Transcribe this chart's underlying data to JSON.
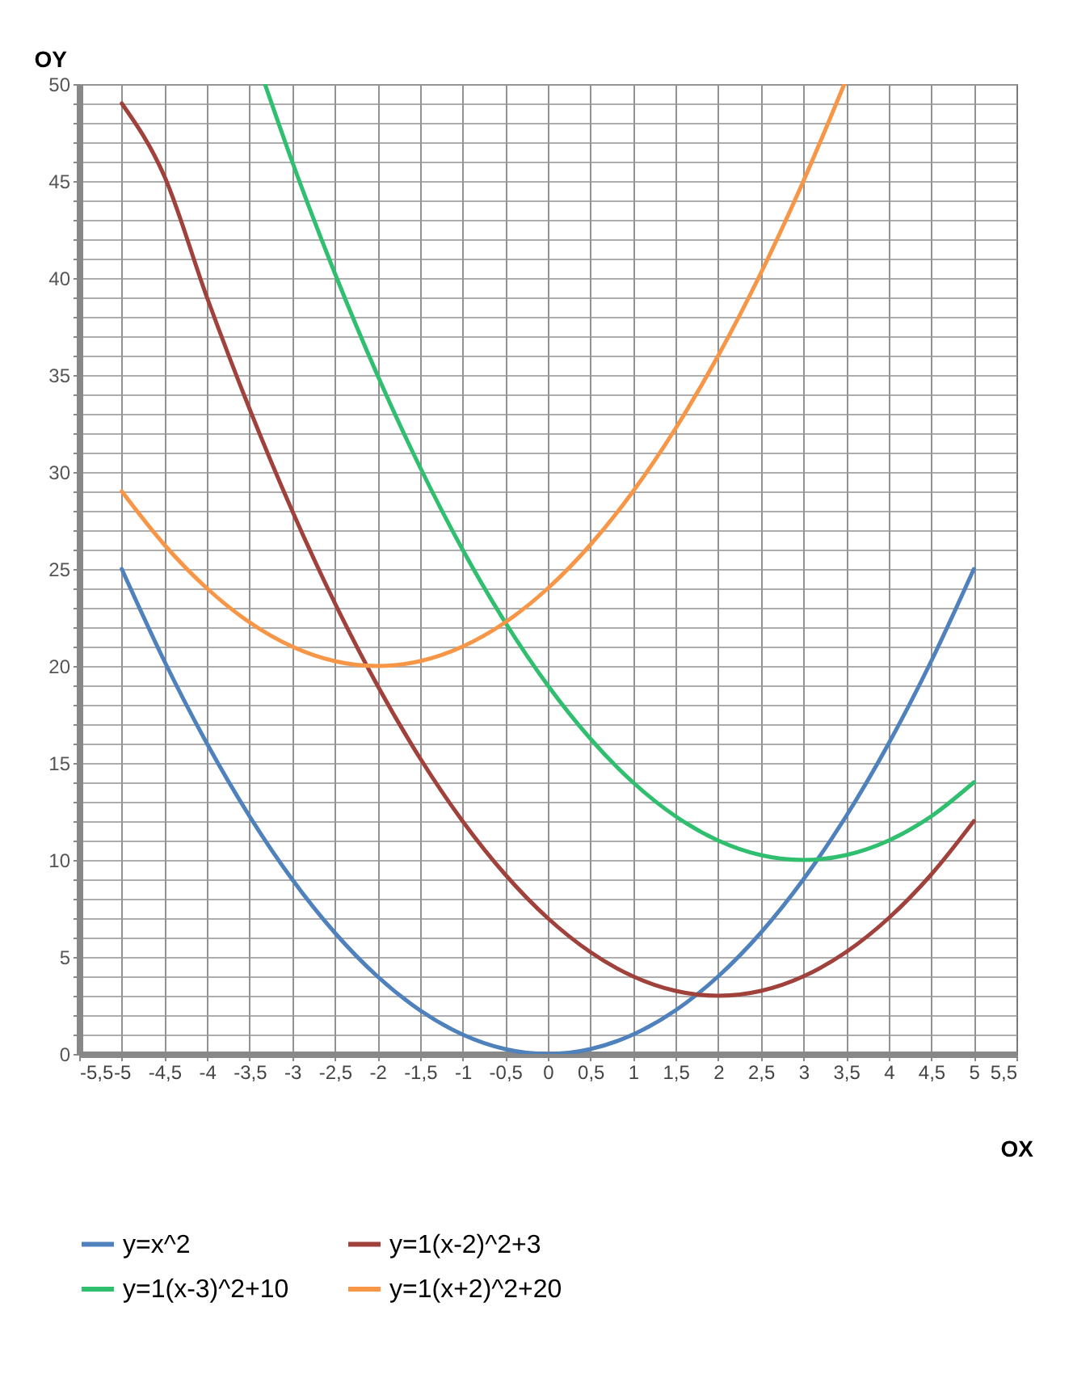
{
  "chart_data": {
    "type": "line",
    "xlabel": "OX",
    "ylabel": "OY",
    "xlim": [
      -5.5,
      5.5
    ],
    "xticks": [
      {
        "value": -5.5,
        "label": "-5,5"
      },
      -5,
      {
        "value": -4.5,
        "label": "-4,5"
      },
      -4,
      {
        "value": -3.5,
        "label": "-3,5"
      },
      -3,
      {
        "value": -2.5,
        "label": "-2,5"
      },
      -2,
      {
        "value": -1.5,
        "label": "-1,5"
      },
      -1,
      {
        "value": -0.5,
        "label": "-0,5"
      },
      0,
      {
        "value": 0.5,
        "label": "0,5"
      },
      1,
      {
        "value": 1.5,
        "label": "1,5"
      },
      2,
      {
        "value": 2.5,
        "label": "2,5"
      },
      3,
      {
        "value": 3.5,
        "label": "3,5"
      },
      4,
      {
        "value": 4.5,
        "label": "4,5"
      },
      5,
      {
        "value": 5.5,
        "label": "5,5"
      }
    ],
    "ylim": [
      0,
      50
    ],
    "yticks": [
      0,
      {
        "value": 1,
        "label": null
      },
      {
        "value": 2,
        "label": null
      },
      {
        "value": 3,
        "label": null
      },
      {
        "value": 4,
        "label": null
      },
      5,
      {
        "value": 6,
        "label": null
      },
      {
        "value": 7,
        "label": null
      },
      {
        "value": 8,
        "label": null
      },
      {
        "value": 9,
        "label": null
      },
      10,
      {
        "value": 11,
        "label": null
      },
      {
        "value": 12,
        "label": null
      },
      {
        "value": 13,
        "label": null
      },
      {
        "value": 14,
        "label": null
      },
      15,
      {
        "value": 16,
        "label": null
      },
      {
        "value": 17,
        "label": null
      },
      {
        "value": 18,
        "label": null
      },
      {
        "value": 19,
        "label": null
      },
      20,
      {
        "value": 21,
        "label": null
      },
      {
        "value": 22,
        "label": null
      },
      {
        "value": 23,
        "label": null
      },
      {
        "value": 24,
        "label": null
      },
      25,
      {
        "value": 26,
        "label": null
      },
      {
        "value": 27,
        "label": null
      },
      {
        "value": 28,
        "label": null
      },
      {
        "value": 29,
        "label": null
      },
      30,
      {
        "value": 31,
        "label": null
      },
      {
        "value": 32,
        "label": null
      },
      {
        "value": 33,
        "label": null
      },
      {
        "value": 34,
        "label": null
      },
      35,
      {
        "value": 36,
        "label": null
      },
      {
        "value": 37,
        "label": null
      },
      {
        "value": 38,
        "label": null
      },
      {
        "value": 39,
        "label": null
      },
      40,
      {
        "value": 41,
        "label": null
      },
      {
        "value": 42,
        "label": null
      },
      {
        "value": 43,
        "label": null
      },
      {
        "value": 44,
        "label": null
      },
      45,
      {
        "value": 46,
        "label": null
      },
      {
        "value": 47,
        "label": null
      },
      {
        "value": 48,
        "label": null
      },
      {
        "value": 49,
        "label": null
      },
      50
    ],
    "grid": true,
    "legend": "bottom",
    "series": [
      {
        "name": "y=x^2",
        "color": "#4f81bd",
        "x": [
          -5,
          -4.5,
          -4,
          -3.5,
          -3,
          -2.5,
          -2,
          -1.5,
          -1,
          -0.5,
          0,
          0.5,
          1,
          1.5,
          2,
          2.5,
          3,
          3.5,
          4,
          4.5,
          5
        ],
        "values": [
          25,
          20.25,
          16,
          12.25,
          9,
          6.25,
          4,
          2.25,
          1,
          0.25,
          0,
          0.25,
          1,
          2.25,
          4,
          6.25,
          9,
          12.25,
          16,
          20.25,
          25
        ]
      },
      {
        "name": "y=1(x-2)^2+3",
        "color": "#a0413c",
        "x": [
          -5,
          -4.5,
          -4,
          -3.5,
          -3,
          -2.5,
          -2,
          -1.5,
          -1,
          -0.5,
          0,
          0.5,
          1,
          1.5,
          2,
          2.5,
          3,
          3.5,
          4,
          4.5,
          5
        ],
        "values": [
          49,
          45.25,
          39,
          33.25,
          28,
          23.25,
          19,
          15.25,
          12,
          9.25,
          7,
          5.25,
          4,
          3.25,
          3,
          3.25,
          4,
          5.25,
          7,
          9.25,
          12
        ]
      },
      {
        "name": "y=1(x-3)^2+10",
        "color": "#2fbf6f",
        "x": [
          -3.32,
          -3,
          -2.5,
          -2,
          -1.5,
          -1,
          -0.5,
          0,
          0.5,
          1,
          1.5,
          2,
          2.5,
          3,
          3.5,
          4,
          4.5,
          5
        ],
        "values": [
          50,
          46,
          40.25,
          35,
          30.25,
          26,
          22.25,
          19,
          16.25,
          14,
          12.25,
          11,
          10.25,
          10,
          10.25,
          11,
          12.25,
          14
        ]
      },
      {
        "name": "y=1(x+2)^2+20",
        "color": "#f79646",
        "x": [
          -5,
          -4.5,
          -4,
          -3.5,
          -3,
          -2.5,
          -2,
          -1.5,
          -1,
          -0.5,
          0,
          0.5,
          1,
          1.5,
          2,
          2.5,
          3,
          3.48
        ],
        "values": [
          29,
          26.25,
          24,
          22.25,
          21,
          20.25,
          20,
          20.25,
          21,
          22.25,
          24,
          26.25,
          29,
          32.25,
          36,
          40.25,
          45,
          50
        ]
      }
    ]
  }
}
